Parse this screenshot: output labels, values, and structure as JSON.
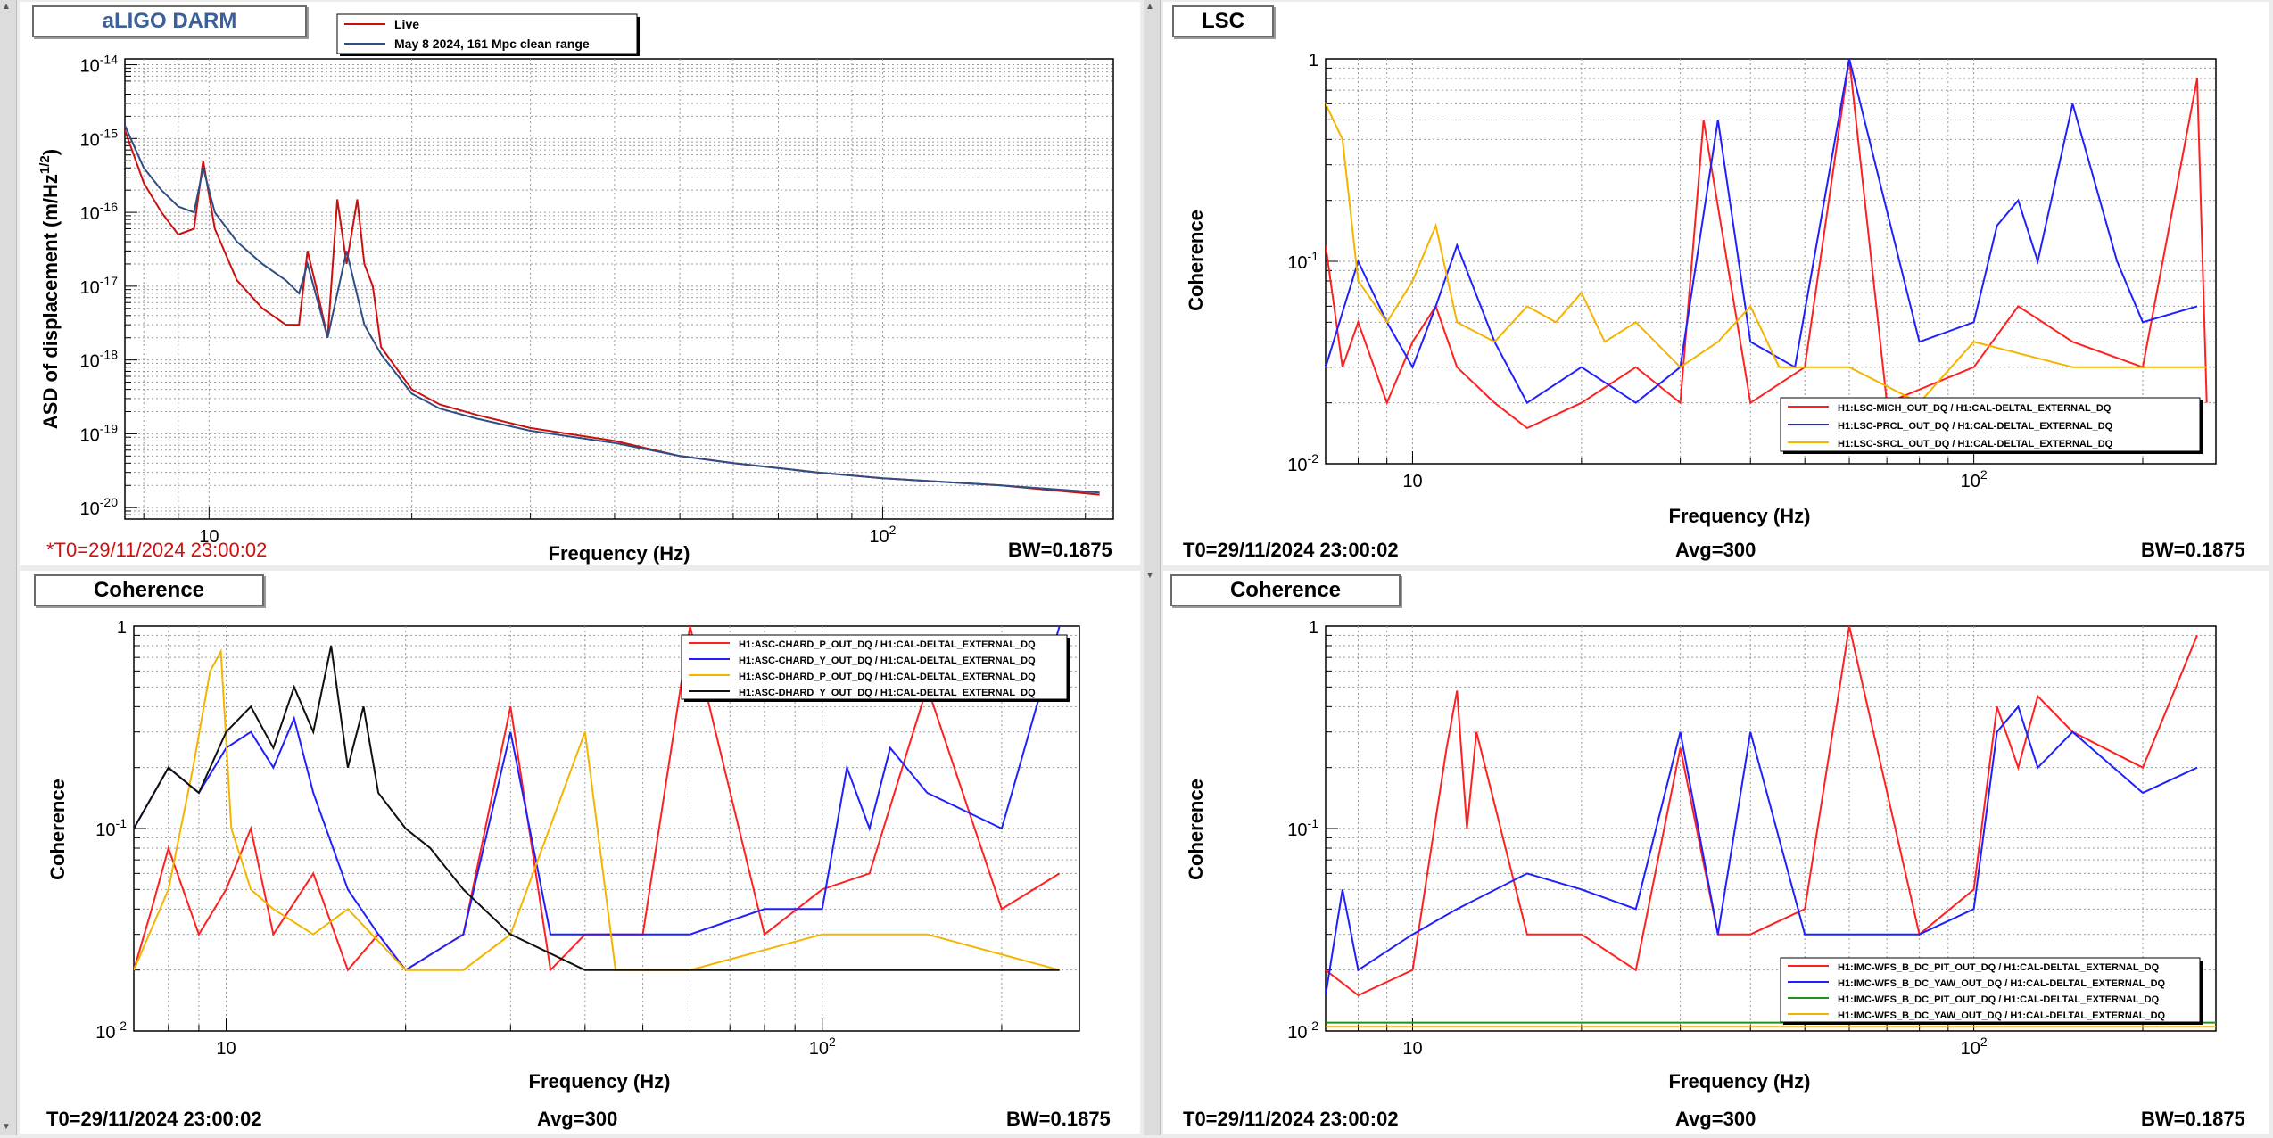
{
  "panels": [
    {
      "title": "aLIGO DARM",
      "title_color": "#3c5f9a",
      "status_left": "*T0=29/11/2024 23:00:02",
      "status_center": "",
      "status_right": "BW=0.1875",
      "chart_data": {
        "type": "line",
        "xlabel": "Frequency (Hz)",
        "ylabel": "ASD of displacement (m/Hz^1/2)",
        "x_scale": "log",
        "y_scale": "log",
        "xlim": [
          7.5,
          220
        ],
        "ylim": [
          7e-21,
          1.2e-14
        ],
        "x_ticks": [
          {
            "v": 10,
            "label": "10"
          },
          {
            "v": 100,
            "label": "10^2"
          }
        ],
        "y_ticks": [
          {
            "v": 1e-14,
            "label": "10^-14"
          },
          {
            "v": 1e-15,
            "label": "10^-15"
          },
          {
            "v": 1e-16,
            "label": "10^-16"
          },
          {
            "v": 1e-17,
            "label": "10^-17"
          },
          {
            "v": 1e-18,
            "label": "10^-18"
          },
          {
            "v": 1e-19,
            "label": "10^-19"
          },
          {
            "v": 1e-20,
            "label": "10^-20"
          }
        ],
        "grid": true,
        "legend_position": "top-left",
        "series": [
          {
            "name": "Live",
            "color": "#cc1010",
            "x": [
              7.5,
              8,
              8.5,
              9,
              9.5,
              9.8,
              10.2,
              11,
              12,
              13,
              13.6,
              14,
              14.5,
              15,
              15.5,
              16,
              16.6,
              17,
              17.5,
              18,
              20,
              22,
              25,
              30,
              40,
              50,
              60,
              80,
              100,
              150,
              210
            ],
            "y": [
              1.3e-15,
              2.5e-16,
              1e-16,
              5e-17,
              6e-17,
              5e-16,
              6e-17,
              1.2e-17,
              5e-18,
              3e-18,
              3e-18,
              3e-17,
              8e-18,
              2e-18,
              1.5e-16,
              2e-17,
              1.5e-16,
              2e-17,
              1e-17,
              1.5e-18,
              4e-19,
              2.5e-19,
              1.8e-19,
              1.2e-19,
              8e-20,
              5e-20,
              4e-20,
              3e-20,
              2.5e-20,
              2e-20,
              1.5e-20
            ]
          },
          {
            "name": "May 8 2024, 161 Mpc clean range",
            "color": "#2d4f85",
            "x": [
              7.5,
              8,
              8.5,
              9,
              9.5,
              9.8,
              10.2,
              11,
              12,
              13,
              13.6,
              14,
              15,
              16,
              17,
              18,
              20,
              22,
              25,
              30,
              40,
              50,
              60,
              80,
              100,
              150,
              210
            ],
            "y": [
              1.5e-15,
              4e-16,
              2e-16,
              1.2e-16,
              1e-16,
              4e-16,
              1e-16,
              4e-17,
              2e-17,
              1.2e-17,
              8e-18,
              2e-17,
              2e-18,
              3e-17,
              3e-18,
              1.2e-18,
              3.5e-19,
              2.2e-19,
              1.6e-19,
              1.1e-19,
              7.5e-20,
              5e-20,
              4e-20,
              3e-20,
              2.5e-20,
              2e-20,
              1.6e-20
            ]
          }
        ]
      }
    },
    {
      "title": "LSC",
      "title_color": "#000000",
      "status_left": "T0=29/11/2024 23:00:02",
      "status_center": "Avg=300",
      "status_right": "BW=0.1875",
      "chart_data": {
        "type": "line",
        "xlabel": "Frequency (Hz)",
        "ylabel": "Coherence",
        "x_scale": "log",
        "y_scale": "log",
        "xlim": [
          7,
          270
        ],
        "ylim": [
          0.01,
          1
        ],
        "x_ticks": [
          {
            "v": 10,
            "label": "10"
          },
          {
            "v": 100,
            "label": "10^2"
          }
        ],
        "y_ticks": [
          {
            "v": 1,
            "label": "1"
          },
          {
            "v": 0.1,
            "label": "10^-1"
          },
          {
            "v": 0.01,
            "label": "10^-2"
          }
        ],
        "grid": true,
        "legend_position": "bottom-right",
        "series": [
          {
            "name": "H1:LSC-MICH_OUT_DQ / H1:CAL-DELTAL_EXTERNAL_DQ",
            "color": "#ff2020",
            "x": [
              7,
              7.5,
              8,
              9,
              10,
              11,
              12,
              14,
              16,
              20,
              25,
              30,
              33,
              40,
              50,
              60,
              70,
              100,
              120,
              150,
              200,
              250,
              260
            ],
            "y": [
              0.12,
              0.03,
              0.05,
              0.02,
              0.04,
              0.06,
              0.03,
              0.02,
              0.015,
              0.02,
              0.03,
              0.02,
              0.5,
              0.02,
              0.03,
              1.0,
              0.02,
              0.03,
              0.06,
              0.04,
              0.03,
              0.8,
              0.02
            ]
          },
          {
            "name": "H1:LSC-PRCL_OUT_DQ / H1:CAL-DELTAL_EXTERNAL_DQ",
            "color": "#2020ff",
            "x": [
              7,
              8,
              9,
              10,
              11,
              12,
              14,
              16,
              20,
              25,
              30,
              35,
              40,
              48,
              60,
              80,
              100,
              110,
              120,
              130,
              150,
              180,
              200,
              250
            ],
            "y": [
              0.03,
              0.1,
              0.05,
              0.03,
              0.06,
              0.12,
              0.04,
              0.02,
              0.03,
              0.02,
              0.03,
              0.5,
              0.04,
              0.03,
              1.0,
              0.04,
              0.05,
              0.15,
              0.2,
              0.1,
              0.6,
              0.1,
              0.05,
              0.06
            ]
          },
          {
            "name": "H1:LSC-SRCL_OUT_DQ / H1:CAL-DELTAL_EXTERNAL_DQ",
            "color": "#f4b400",
            "x": [
              7,
              7.5,
              8,
              9,
              10,
              11,
              12,
              14,
              16,
              18,
              20,
              22,
              25,
              30,
              35,
              40,
              45,
              60,
              80,
              100,
              150,
              200,
              260
            ],
            "y": [
              0.6,
              0.4,
              0.08,
              0.05,
              0.08,
              0.15,
              0.05,
              0.04,
              0.06,
              0.05,
              0.07,
              0.04,
              0.05,
              0.03,
              0.04,
              0.06,
              0.03,
              0.03,
              0.02,
              0.04,
              0.03,
              0.03,
              0.03
            ]
          }
        ]
      }
    },
    {
      "title": "Coherence",
      "title_color": "#000000",
      "status_left": "T0=29/11/2024 23:00:02",
      "status_center": "Avg=300",
      "status_right": "BW=0.1875",
      "chart_data": {
        "type": "line",
        "xlabel": "Frequency (Hz)",
        "ylabel": "Coherence",
        "x_scale": "log",
        "y_scale": "log",
        "xlim": [
          7,
          270
        ],
        "ylim": [
          0.01,
          1
        ],
        "x_ticks": [
          {
            "v": 10,
            "label": "10"
          },
          {
            "v": 100,
            "label": "10^2"
          }
        ],
        "y_ticks": [
          {
            "v": 1,
            "label": "1"
          },
          {
            "v": 0.1,
            "label": "10^-1"
          },
          {
            "v": 0.01,
            "label": "10^-2"
          }
        ],
        "grid": true,
        "legend_position": "top-right",
        "series": [
          {
            "name": "H1:ASC-CHARD_P_OUT_DQ / H1:CAL-DELTAL_EXTERNAL_DQ",
            "color": "#ff2020",
            "x": [
              7,
              7.5,
              8,
              9,
              10,
              11,
              12,
              14,
              16,
              18,
              20,
              25,
              30,
              35,
              40,
              50,
              60,
              80,
              100,
              120,
              150,
              200,
              250
            ],
            "y": [
              0.02,
              0.04,
              0.08,
              0.03,
              0.05,
              0.1,
              0.03,
              0.06,
              0.02,
              0.03,
              0.02,
              0.03,
              0.4,
              0.02,
              0.03,
              0.03,
              1.0,
              0.03,
              0.05,
              0.06,
              0.5,
              0.04,
              0.06
            ]
          },
          {
            "name": "H1:ASC-CHARD_Y_OUT_DQ / H1:CAL-DELTAL_EXTERNAL_DQ",
            "color": "#2020ff",
            "x": [
              7,
              8,
              9,
              10,
              11,
              12,
              13,
              14,
              16,
              18,
              20,
              25,
              30,
              35,
              40,
              50,
              60,
              80,
              100,
              110,
              120,
              130,
              150,
              200,
              250
            ],
            "y": [
              0.1,
              0.2,
              0.15,
              0.25,
              0.3,
              0.2,
              0.35,
              0.15,
              0.05,
              0.03,
              0.02,
              0.03,
              0.3,
              0.03,
              0.03,
              0.03,
              0.03,
              0.04,
              0.04,
              0.2,
              0.1,
              0.25,
              0.15,
              0.1,
              1.0
            ]
          },
          {
            "name": "H1:ASC-DHARD_P_OUT_DQ / H1:CAL-DELTAL_EXTERNAL_DQ",
            "color": "#f4b400",
            "x": [
              7,
              8,
              8.8,
              9.4,
              9.8,
              10.2,
              11,
              12,
              14,
              16,
              20,
              25,
              30,
              40,
              45,
              60,
              100,
              150,
              250
            ],
            "y": [
              0.02,
              0.05,
              0.2,
              0.6,
              0.75,
              0.1,
              0.05,
              0.04,
              0.03,
              0.04,
              0.02,
              0.02,
              0.03,
              0.3,
              0.02,
              0.02,
              0.03,
              0.03,
              0.02
            ]
          },
          {
            "name": "H1:ASC-DHARD_Y_OUT_DQ / H1:CAL-DELTAL_EXTERNAL_DQ",
            "color": "#101010",
            "x": [
              7,
              8,
              9,
              10,
              11,
              12,
              13,
              14,
              15,
              16,
              17,
              18,
              20,
              22,
              25,
              30,
              40,
              60,
              100,
              150,
              250
            ],
            "y": [
              0.1,
              0.2,
              0.15,
              0.3,
              0.4,
              0.25,
              0.5,
              0.3,
              0.8,
              0.2,
              0.4,
              0.15,
              0.1,
              0.08,
              0.05,
              0.03,
              0.02,
              0.02,
              0.02,
              0.02,
              0.02
            ]
          }
        ]
      }
    },
    {
      "title": "Coherence",
      "title_color": "#000000",
      "status_left": "T0=29/11/2024 23:00:02",
      "status_center": "Avg=300",
      "status_right": "BW=0.1875",
      "chart_data": {
        "type": "line",
        "xlabel": "Frequency (Hz)",
        "ylabel": "Coherence",
        "x_scale": "log",
        "y_scale": "log",
        "xlim": [
          7,
          270
        ],
        "ylim": [
          0.01,
          1
        ],
        "x_ticks": [
          {
            "v": 10,
            "label": "10"
          },
          {
            "v": 100,
            "label": "10^2"
          }
        ],
        "y_ticks": [
          {
            "v": 1,
            "label": "1"
          },
          {
            "v": 0.1,
            "label": "10^-1"
          },
          {
            "v": 0.01,
            "label": "10^-2"
          }
        ],
        "grid": true,
        "legend_position": "bottom-right",
        "series": [
          {
            "name": "H1:IMC-WFS_B_DC_PIT_OUT_DQ / H1:CAL-DELTAL_EXTERNAL_DQ",
            "color": "#ff2020",
            "x": [
              7,
              8,
              10,
              11.5,
              12,
              12.5,
              13,
              16,
              20,
              25,
              30,
              35,
              40,
              50,
              60,
              80,
              100,
              110,
              120,
              130,
              150,
              200,
              250
            ],
            "y": [
              0.02,
              0.015,
              0.02,
              0.25,
              0.48,
              0.1,
              0.3,
              0.03,
              0.03,
              0.02,
              0.25,
              0.03,
              0.03,
              0.04,
              1.0,
              0.03,
              0.05,
              0.4,
              0.2,
              0.45,
              0.3,
              0.2,
              0.9
            ]
          },
          {
            "name": "H1:IMC-WFS_B_DC_YAW_OUT_DQ / H1:CAL-DELTAL_EXTERNAL_DQ",
            "color": "#2020ff",
            "x": [
              7,
              7.5,
              8,
              10,
              12,
              16,
              20,
              25,
              30,
              35,
              40,
              50,
              60,
              80,
              100,
              110,
              120,
              130,
              150,
              200,
              250
            ],
            "y": [
              0.015,
              0.05,
              0.02,
              0.03,
              0.04,
              0.06,
              0.05,
              0.04,
              0.3,
              0.03,
              0.3,
              0.03,
              0.03,
              0.03,
              0.04,
              0.3,
              0.4,
              0.2,
              0.3,
              0.15,
              0.2
            ]
          },
          {
            "name": "H1:IMC-WFS_B_DC_PIT_OUT_DQ / H1:CAL-DELTAL_EXTERNAL_DQ",
            "color": "#209020",
            "x": [
              7,
              270
            ],
            "y": [
              0.011,
              0.011
            ]
          },
          {
            "name": "H1:IMC-WFS_B_DC_YAW_OUT_DQ / H1:CAL-DELTAL_EXTERNAL_DQ",
            "color": "#f4b400",
            "x": [
              7,
              270
            ],
            "y": [
              0.0105,
              0.0105
            ]
          }
        ]
      }
    }
  ]
}
